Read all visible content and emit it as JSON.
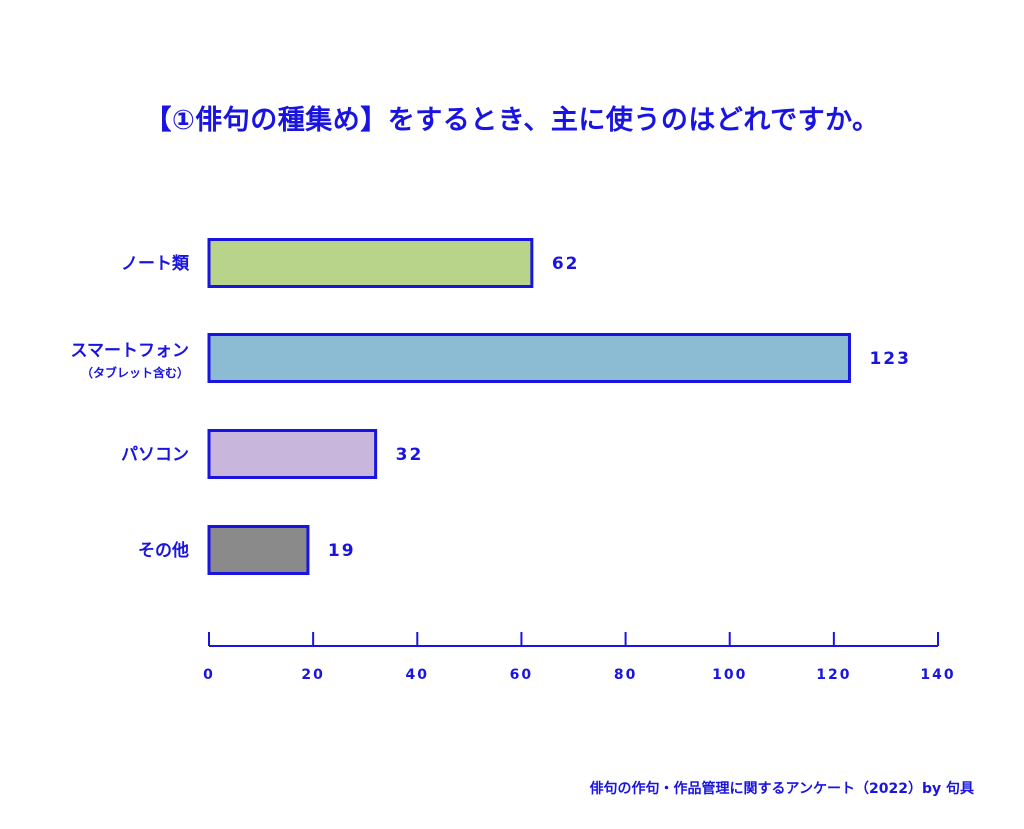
{
  "chart_data": {
    "type": "bar",
    "orientation": "horizontal",
    "title": "【①俳句の種集め】をするとき、主に使うのはどれですか。",
    "categories": [
      "ノート類",
      "スマートフォン",
      "パソコン",
      "その他"
    ],
    "category_sublabels": [
      "",
      "（タブレット含む）",
      "",
      ""
    ],
    "values": [
      62,
      123,
      32,
      19
    ],
    "bar_colors": [
      "#b8d48a",
      "#8cbcd4",
      "#c9b6dd",
      "#8a8a8a"
    ],
    "bar_outline": "#1a14e0",
    "xlim": [
      0,
      140
    ],
    "xticks": [
      "0",
      "20",
      "40",
      "60",
      "80",
      "100",
      "120",
      "140"
    ],
    "xlabel": "",
    "ylabel": "",
    "grid": false,
    "legend": "none"
  },
  "source": "俳句の作句・作品管理に関するアンケート（2022）by 句具",
  "colors": {
    "accent": "#1a14e0"
  }
}
